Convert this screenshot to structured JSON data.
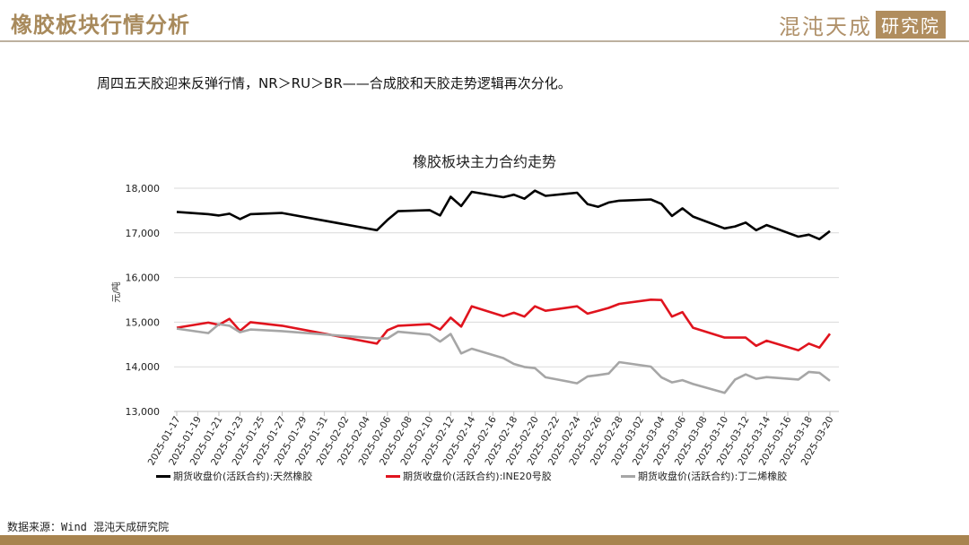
{
  "header": {
    "title": "橡胶板块行情分析",
    "logo_text": "混沌天成",
    "logo_box": "研究院"
  },
  "summary": "周四五天胶迎来反弹行情，NR＞RU＞BR——合成胶和天胶走势逻辑再次分化。",
  "source": "数据来源：Wind 混沌天成研究院",
  "colors": {
    "brand": "#a88a5c",
    "footer_bar": "#a8844f"
  },
  "chart_data": {
    "type": "line",
    "title": "橡胶板块主力合约走势",
    "ylabel": "元/吨",
    "xlabel": "",
    "ylim": [
      13000,
      18000
    ],
    "y_ticks": [
      "13,000",
      "14,000",
      "15,000",
      "16,000",
      "17,000",
      "18,000"
    ],
    "y_tick_values": [
      13000,
      14000,
      15000,
      16000,
      17000,
      18000
    ],
    "xlim": [
      "2025-01-17",
      "2025-03-20"
    ],
    "x_tick_labels": [
      "2025-01-17",
      "2025-01-19",
      "2025-01-21",
      "2025-01-23",
      "2025-01-25",
      "2025-01-27",
      "2025-01-29",
      "2025-01-31",
      "2025-02-02",
      "2025-02-04",
      "2025-02-06",
      "2025-02-08",
      "2025-02-10",
      "2025-02-12",
      "2025-02-14",
      "2025-02-16",
      "2025-02-18",
      "2025-02-20",
      "2025-02-22",
      "2025-02-24",
      "2025-02-26",
      "2025-02-28",
      "2025-03-02",
      "2025-03-04",
      "2025-03-06",
      "2025-03-08",
      "2025-03-10",
      "2025-03-12",
      "2025-03-14",
      "2025-03-16",
      "2025-03-18",
      "2025-03-20"
    ],
    "grid": "horizontal",
    "legend_position": "bottom",
    "x": [
      "2025-01-17",
      "2025-01-20",
      "2025-01-21",
      "2025-01-22",
      "2025-01-23",
      "2025-01-24",
      "2025-01-27",
      "2025-02-05",
      "2025-02-06",
      "2025-02-07",
      "2025-02-10",
      "2025-02-11",
      "2025-02-12",
      "2025-02-13",
      "2025-02-14",
      "2025-02-17",
      "2025-02-18",
      "2025-02-19",
      "2025-02-20",
      "2025-02-21",
      "2025-02-24",
      "2025-02-25",
      "2025-02-26",
      "2025-02-27",
      "2025-02-28",
      "2025-03-03",
      "2025-03-04",
      "2025-03-05",
      "2025-03-06",
      "2025-03-07",
      "2025-03-10",
      "2025-03-11",
      "2025-03-12",
      "2025-03-13",
      "2025-03-14",
      "2025-03-17",
      "2025-03-18",
      "2025-03-19",
      "2025-03-20"
    ],
    "series": [
      {
        "name": "期货收盘价(活跃合约):天然橡胶",
        "color": "#000000",
        "values": [
          17470,
          17420,
          17390,
          17430,
          17310,
          17420,
          17445,
          17060,
          17290,
          17485,
          17510,
          17390,
          17810,
          17600,
          17920,
          17800,
          17855,
          17765,
          17945,
          17830,
          17900,
          17645,
          17585,
          17680,
          17720,
          17750,
          17650,
          17380,
          17550,
          17365,
          17100,
          17145,
          17230,
          17060,
          17175,
          16915,
          16960,
          16860,
          17040
        ]
      },
      {
        "name": "期货收盘价(活跃合约):INE20号胶",
        "color": "#e0141e",
        "values": [
          14875,
          14990,
          14940,
          15075,
          14805,
          15000,
          14920,
          14520,
          14820,
          14920,
          14955,
          14835,
          15100,
          14900,
          15355,
          15135,
          15210,
          15125,
          15355,
          15255,
          15355,
          15190,
          15255,
          15320,
          15410,
          15505,
          15495,
          15125,
          15225,
          14875,
          14655,
          14655,
          14655,
          14470,
          14585,
          14370,
          14520,
          14430,
          14740
        ]
      },
      {
        "name": "期货收盘价(活跃合约):丁二烯橡胶",
        "color": "#a6a6a6",
        "values": [
          14855,
          14755,
          14955,
          14920,
          14775,
          14835,
          14800,
          14635,
          14635,
          14785,
          14720,
          14565,
          14735,
          14300,
          14405,
          14195,
          14065,
          13995,
          13970,
          13765,
          13630,
          13785,
          13815,
          13850,
          14105,
          14005,
          13765,
          13650,
          13700,
          13615,
          13415,
          13715,
          13830,
          13730,
          13770,
          13715,
          13885,
          13865,
          13685
        ]
      }
    ]
  }
}
